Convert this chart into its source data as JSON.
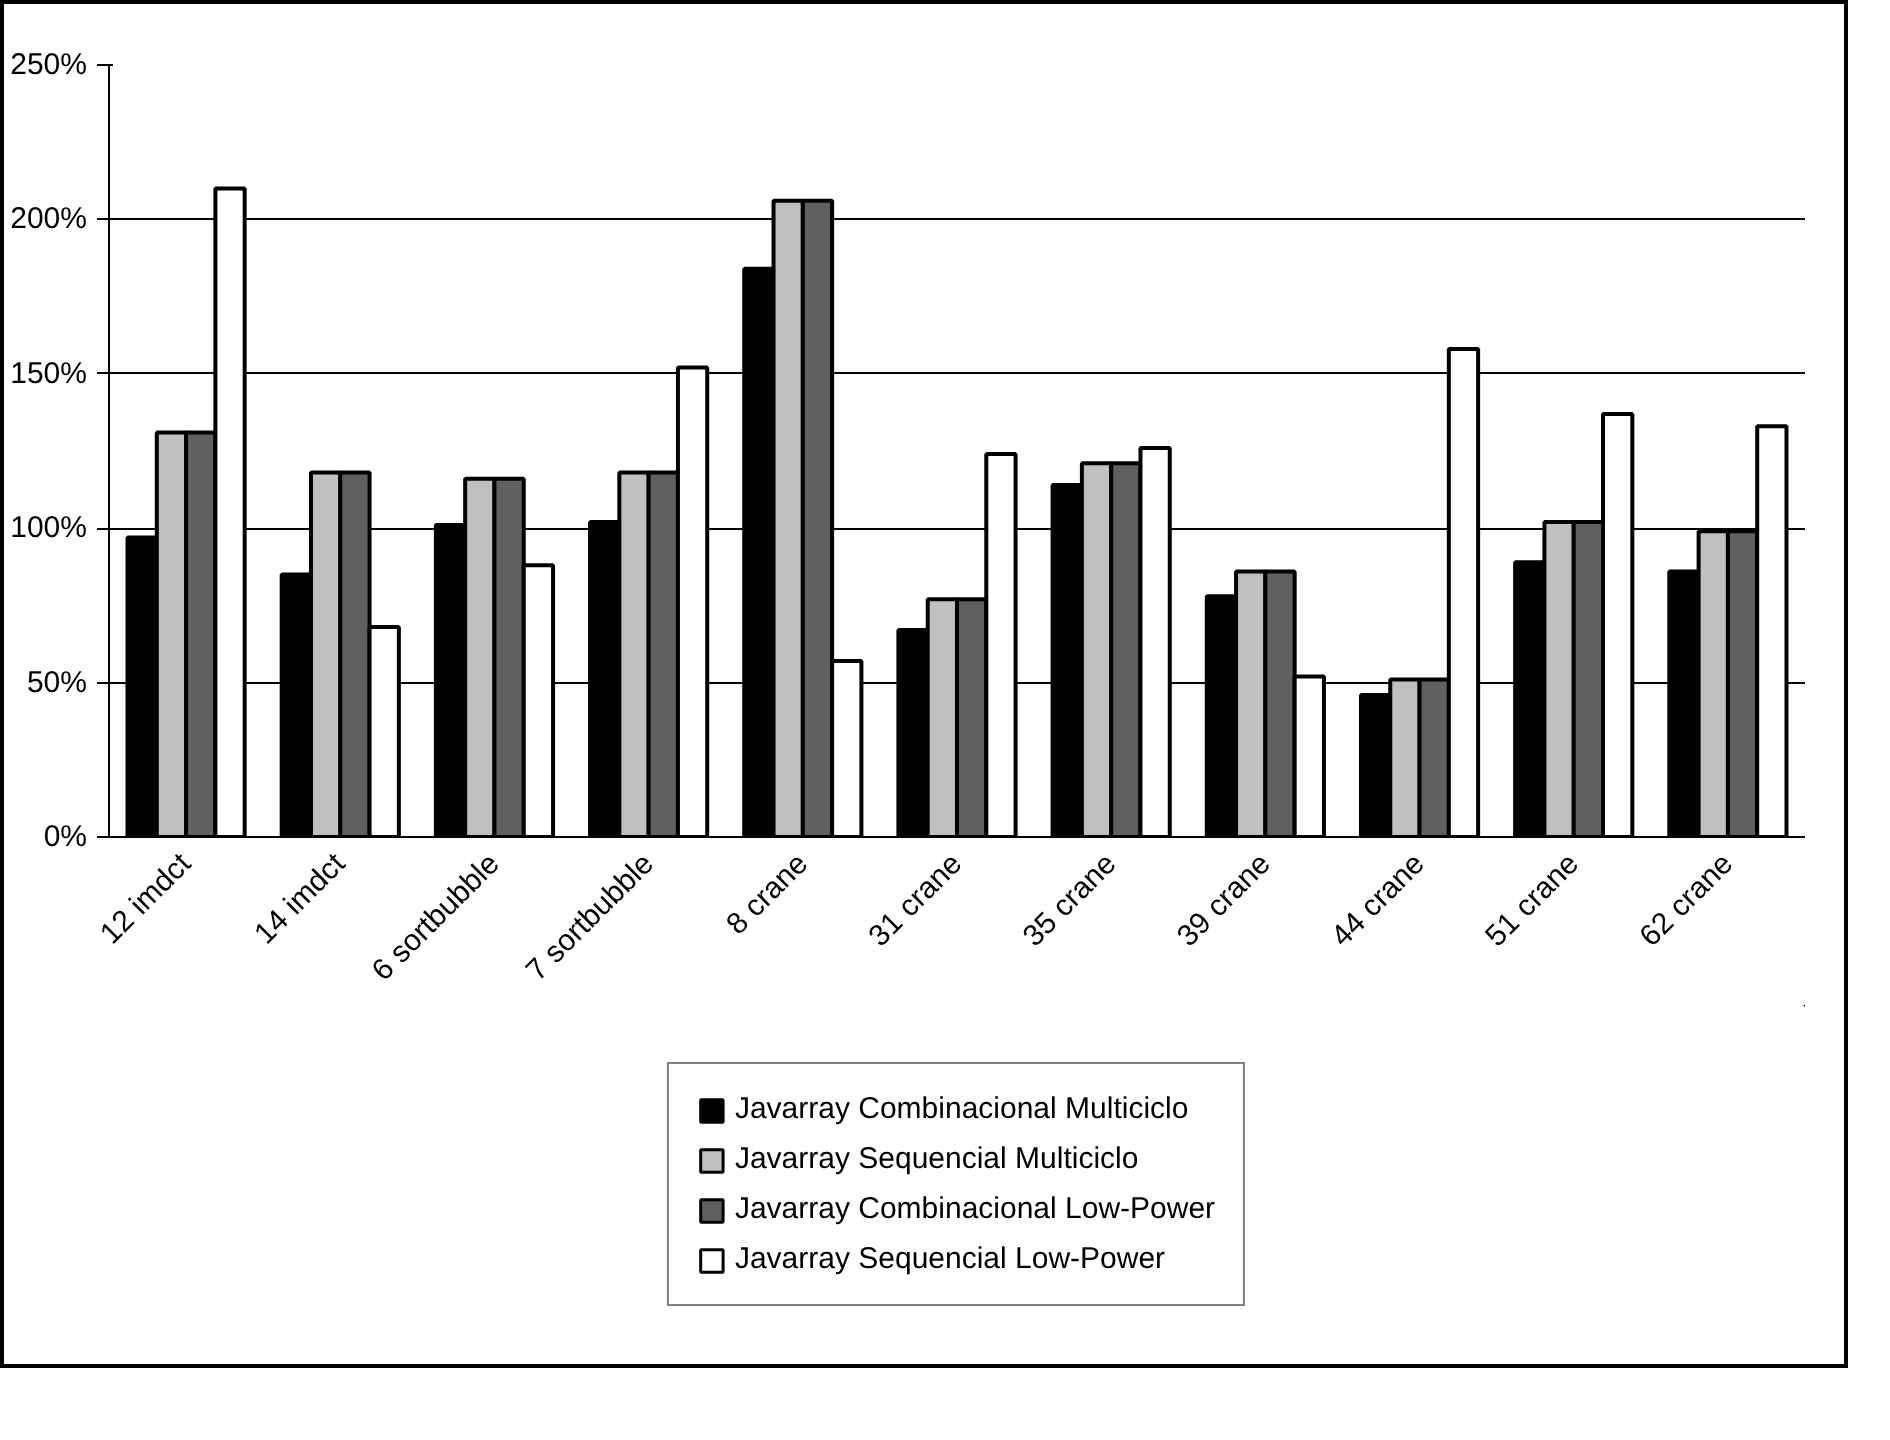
{
  "chart_data": {
    "type": "bar",
    "categories": [
      "12 imdct",
      "14 imdct",
      "6 sortbubble",
      "7 sortbubble",
      "8 crane",
      "31 crane",
      "35 crane",
      "39 crane",
      "44 crane",
      "51 crane",
      "62 crane"
    ],
    "series": [
      {
        "name": "Javarray Combinacional Multiciclo",
        "color": "#000000",
        "values": [
          97,
          85,
          101,
          102,
          184,
          67,
          114,
          78,
          46,
          89,
          86
        ]
      },
      {
        "name": "Javarray Sequencial Multiciclo",
        "color": "#c0c0c0",
        "values": [
          131,
          118,
          116,
          118,
          206,
          77,
          121,
          86,
          51,
          102,
          99
        ]
      },
      {
        "name": "Javarray Combinacional Low-Power",
        "color": "#606060",
        "values": [
          131,
          118,
          116,
          118,
          206,
          77,
          121,
          86,
          51,
          102,
          99
        ]
      },
      {
        "name": "Javarray Sequencial Low-Power",
        "color": "#ffffff",
        "values": [
          210,
          68,
          88,
          152,
          57,
          124,
          126,
          52,
          158,
          137,
          133
        ]
      }
    ],
    "ylim": [
      0,
      250
    ],
    "yticks": [
      {
        "value": 0,
        "label": "0%"
      },
      {
        "value": 50,
        "label": "50%"
      },
      {
        "value": 100,
        "label": "100%"
      },
      {
        "value": 150,
        "label": "150%"
      },
      {
        "value": 200,
        "label": "200%"
      },
      {
        "value": 250,
        "label": "250%"
      }
    ],
    "grid": "y",
    "legend": "bottom"
  }
}
